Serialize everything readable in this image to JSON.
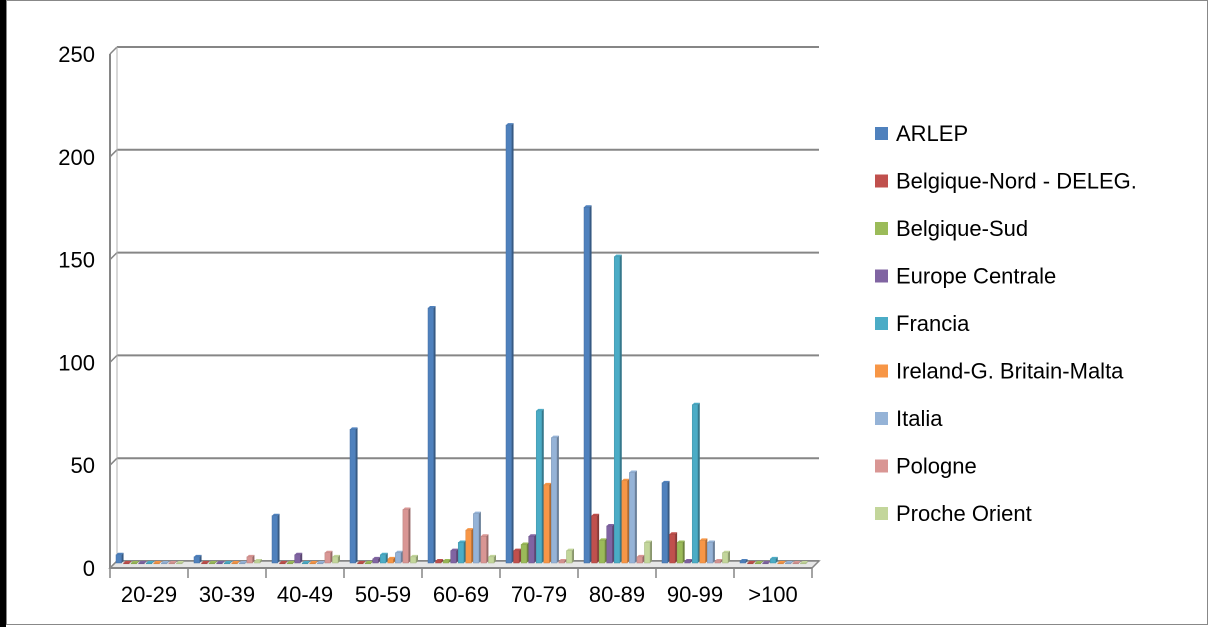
{
  "chart_data": {
    "type": "bar",
    "title": "",
    "xlabel": "",
    "ylabel": "",
    "ylim": [
      0,
      250
    ],
    "yticks": [
      0,
      50,
      100,
      150,
      200,
      250
    ],
    "grid": true,
    "legend_position": "right",
    "categories": [
      "20-29",
      "30-39",
      "40-49",
      "50-59",
      "60-69",
      "70-79",
      "80-89",
      "90-99",
      ">100"
    ],
    "series": [
      {
        "name": "ARLEP",
        "color": "#4F81BD",
        "values": [
          4,
          3,
          23,
          65,
          124,
          213,
          173,
          39,
          1
        ]
      },
      {
        "name": "Belgique-Nord - DELEG.",
        "color": "#C0504D",
        "values": [
          0,
          0,
          0,
          0,
          1,
          6,
          23,
          14,
          0
        ]
      },
      {
        "name": "Belgique-Sud",
        "color": "#9BBB59",
        "values": [
          0,
          0,
          0,
          0,
          1,
          9,
          11,
          10,
          0
        ]
      },
      {
        "name": "Europe Centrale",
        "color": "#8064A2",
        "values": [
          0,
          0,
          4,
          2,
          6,
          13,
          18,
          1,
          0
        ]
      },
      {
        "name": "Francia",
        "color": "#4BACC6",
        "values": [
          0,
          0,
          0,
          4,
          10,
          74,
          149,
          77,
          2
        ]
      },
      {
        "name": "Ireland-G. Britain-Malta",
        "color": "#F79646",
        "values": [
          0,
          0,
          0,
          2,
          16,
          38,
          40,
          11,
          0
        ]
      },
      {
        "name": "Italia",
        "color": "#95B3D7",
        "values": [
          0,
          0,
          0,
          5,
          24,
          61,
          44,
          10,
          0
        ]
      },
      {
        "name": "Pologne",
        "color": "#D99694",
        "values": [
          0,
          3,
          5,
          26,
          13,
          1,
          3,
          1,
          0
        ]
      },
      {
        "name": "Proche Orient",
        "color": "#C3D69B",
        "values": [
          0,
          1,
          3,
          3,
          3,
          6,
          10,
          5,
          0
        ]
      }
    ]
  }
}
